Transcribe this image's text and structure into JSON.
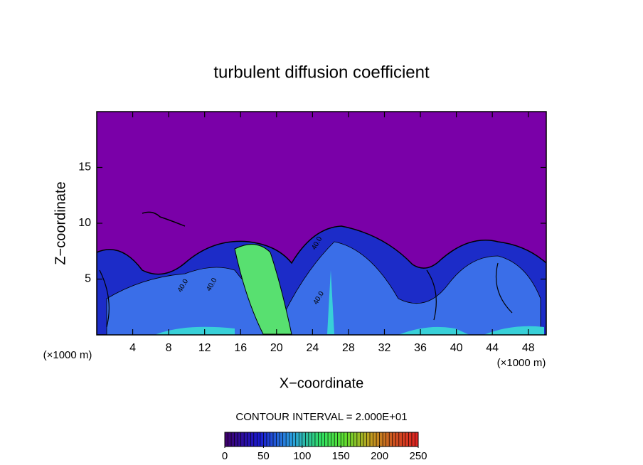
{
  "chart_data": {
    "type": "contour",
    "title": "turbulent diffusion coefficient",
    "x_label": "X−coordinate",
    "y_label": "Z−coordinate",
    "x_unit": "(×1000 m)",
    "y_unit": "(×1000 m)",
    "xlim": [
      0,
      50
    ],
    "ylim": [
      0,
      20
    ],
    "xticks": [
      4,
      8,
      12,
      16,
      20,
      24,
      28,
      32,
      36,
      40,
      44,
      48
    ],
    "yticks": [
      5,
      10,
      15
    ],
    "background_color": "#7a00a8",
    "contour_interval_label": "CONTOUR INTERVAL = 2.000E+01",
    "contour_labels": [
      {
        "text": "40.0",
        "x": 9.6,
        "y": 4.4
      },
      {
        "text": "40.0",
        "x": 12.8,
        "y": 4.5
      },
      {
        "text": "40.0",
        "x": 24.5,
        "y": 8.2
      },
      {
        "text": "40.0",
        "x": 24.7,
        "y": 3.3
      }
    ],
    "colorbar": {
      "lim": [
        0,
        250
      ],
      "ticks": [
        0,
        50,
        100,
        150,
        200,
        250
      ]
    }
  }
}
